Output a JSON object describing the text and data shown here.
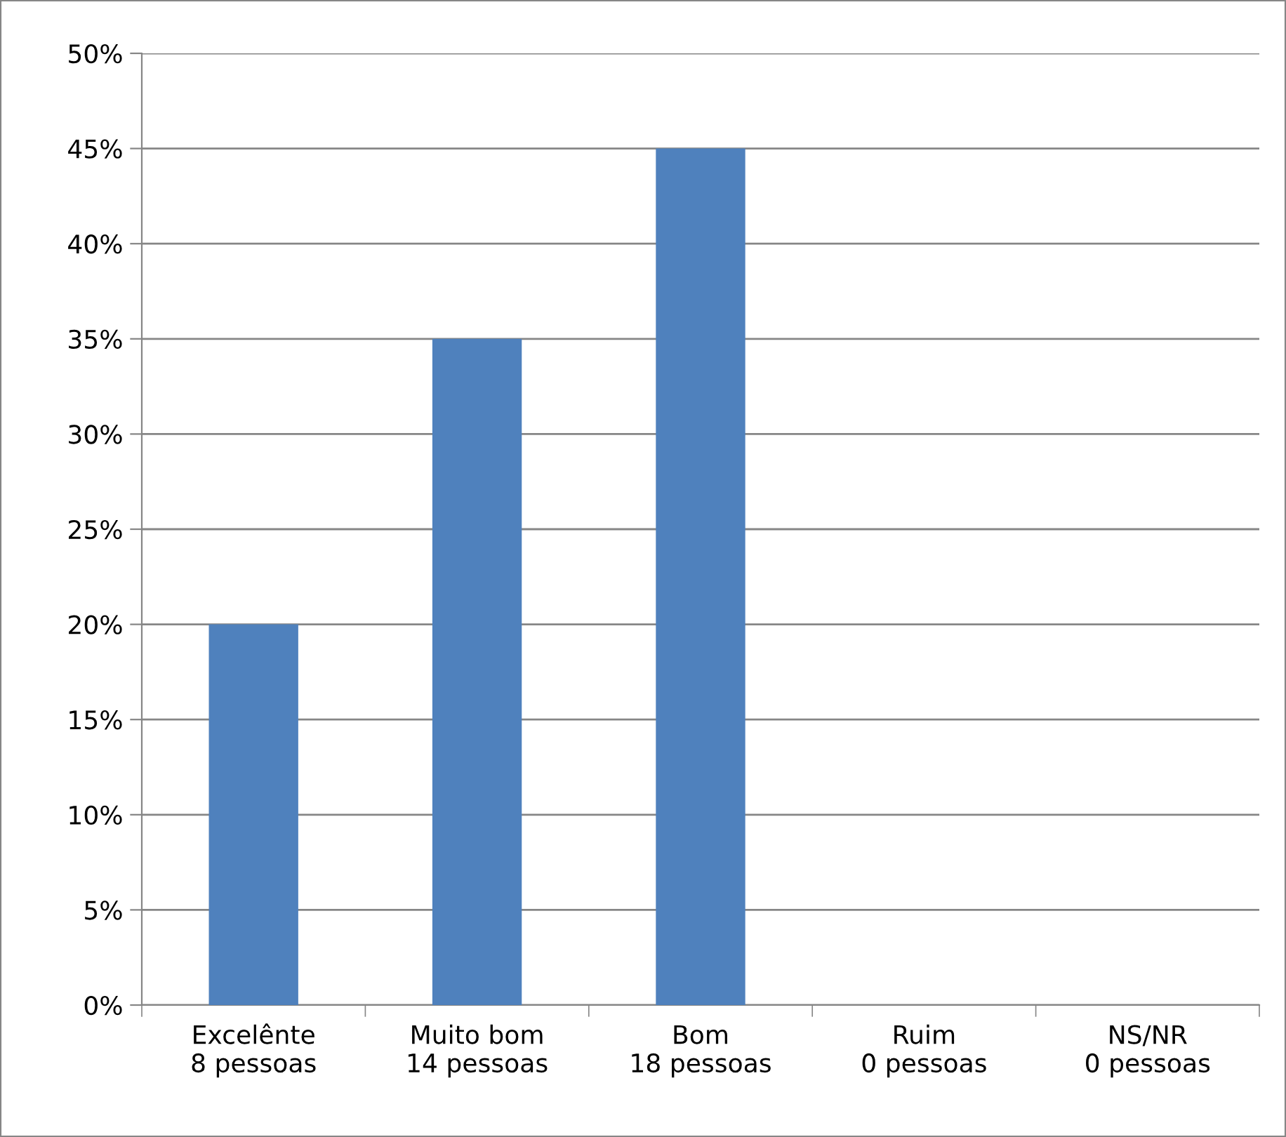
{
  "chart_data": {
    "type": "bar",
    "categories": [
      "Excelênte\n8 pessoas",
      "Muito bom\n14 pessoas",
      "Bom\n18 pessoas",
      "Ruim\n0 pessoas",
      "NS/NR\n0 pessoas"
    ],
    "values": [
      20,
      35,
      45,
      0,
      0
    ],
    "color": "#4f81bd",
    "ylim": [
      0,
      50
    ],
    "yticks": [
      {
        "value": 0,
        "label": "0%"
      },
      {
        "value": 5,
        "label": "5%"
      },
      {
        "value": 10,
        "label": "10%"
      },
      {
        "value": 15,
        "label": "15%"
      },
      {
        "value": 20,
        "label": "20%"
      },
      {
        "value": 25,
        "label": "25%"
      },
      {
        "value": 30,
        "label": "30%"
      },
      {
        "value": 35,
        "label": "35%"
      },
      {
        "value": 40,
        "label": "40%"
      },
      {
        "value": 45,
        "label": "45%"
      },
      {
        "value": 50,
        "label": "50%"
      }
    ],
    "grid": "y",
    "legend": false
  }
}
